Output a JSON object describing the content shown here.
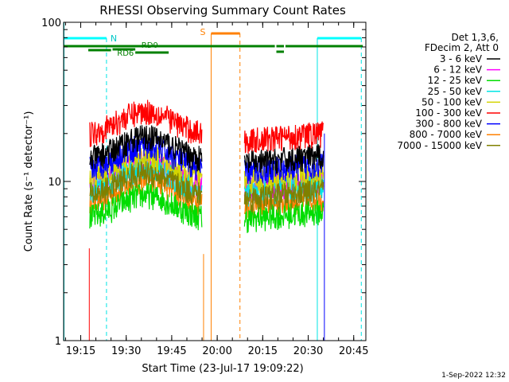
{
  "chart_data": {
    "type": "line",
    "title": "RHESSI Observing Summary Count Rates",
    "xlabel": "Start Time (23-Jul-17 19:09:22)",
    "ylabel": "Count Rate (s⁻¹ detector⁻¹)",
    "y_scale": "log",
    "ylim": [
      1,
      100
    ],
    "xlim": [
      "19:09:22",
      "20:49:00"
    ],
    "x_ticks": [
      "19:15",
      "19:30",
      "19:45",
      "20:00",
      "20:15",
      "20:30",
      "20:45"
    ],
    "y_ticks": [
      "1",
      "10",
      "100"
    ],
    "footer": "1-Sep-2022 12:32",
    "legend_header": [
      "Det 1,3,6,",
      "FDecim 2, Att 0"
    ],
    "legend_position": "right",
    "series": [
      {
        "name": "3 - 6 keV",
        "color": "#000000",
        "level_pre": 13.5,
        "level_post": 13.0
      },
      {
        "name": "6 - 12 keV",
        "color": "#ff00ff",
        "level_pre": 9.2,
        "level_post": 9.0
      },
      {
        "name": "12 - 25 keV",
        "color": "#00dd00",
        "level_pre": 5.8,
        "level_post": 5.8
      },
      {
        "name": "25 - 50 keV",
        "color": "#00e5e5",
        "level_pre": 8.6,
        "level_post": 8.5
      },
      {
        "name": "50 - 100 keV",
        "color": "#d4d400",
        "level_pre": 10.2,
        "level_post": 10.0
      },
      {
        "name": "100 - 300 keV",
        "color": "#ff0000",
        "level_pre": 19.5,
        "level_post": 18.0
      },
      {
        "name": "300 - 800 keV",
        "color": "#0000ff",
        "level_pre": 11.8,
        "level_post": 11.5
      },
      {
        "name": "800 - 7000 keV",
        "color": "#ff8000",
        "level_pre": 7.2,
        "level_post": 7.0
      },
      {
        "name": "7000 - 15000 keV",
        "color": "#808000",
        "level_pre": 8.0,
        "level_post": 7.8
      }
    ],
    "data_intervals": [
      [
        "19:18:00",
        "19:55:00"
      ],
      [
        "20:09:00",
        "20:35:00"
      ]
    ],
    "annotations": {
      "saa_label": "S",
      "night_label": "N",
      "rd0_label": "RD0",
      "rd6_label": "RD6"
    }
  }
}
